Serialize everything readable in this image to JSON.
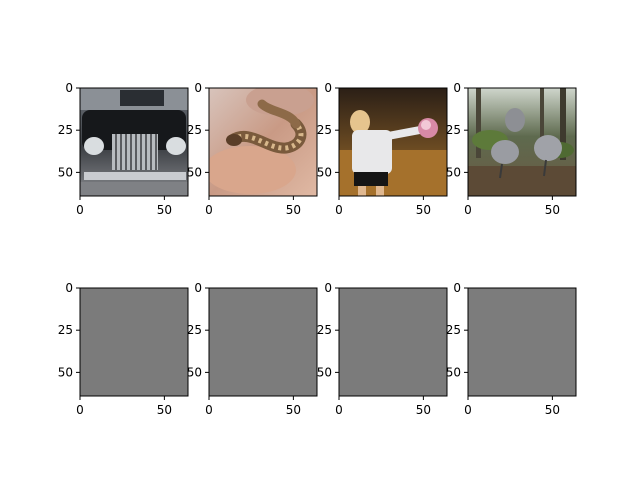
{
  "chart_data": [
    {
      "type": "image",
      "content": "photo of a vintage black car, front grille",
      "row": 0,
      "col": 0,
      "xticks": [
        0,
        50
      ],
      "yticks": [
        0,
        25,
        50
      ],
      "xlim": [
        0,
        64
      ],
      "ylim": [
        64,
        0
      ]
    },
    {
      "type": "image",
      "content": "photo of a small spotted snake held in a hand",
      "row": 0,
      "col": 1,
      "xticks": [
        0,
        50
      ],
      "yticks": [
        0,
        25,
        50
      ],
      "xlim": [
        0,
        64
      ],
      "ylim": [
        64,
        0
      ]
    },
    {
      "type": "image",
      "content": "photo of a girl playing volleyball indoors",
      "row": 0,
      "col": 2,
      "xticks": [
        0,
        50
      ],
      "yticks": [
        0,
        25,
        50
      ],
      "xlim": [
        0,
        64
      ],
      "ylim": [
        64,
        0
      ]
    },
    {
      "type": "image",
      "content": "photo of turkeys in a forest",
      "row": 0,
      "col": 3,
      "xticks": [
        0,
        50
      ],
      "yticks": [
        0,
        25,
        50
      ],
      "xlim": [
        0,
        64
      ],
      "ylim": [
        64,
        0
      ]
    },
    {
      "type": "image",
      "content": "uniform gray image",
      "row": 1,
      "col": 0,
      "xticks": [
        0,
        50
      ],
      "yticks": [
        0,
        25,
        50
      ],
      "xlim": [
        0,
        64
      ],
      "ylim": [
        64,
        0
      ]
    },
    {
      "type": "image",
      "content": "uniform gray image",
      "row": 1,
      "col": 1,
      "xticks": [
        0,
        50
      ],
      "yticks": [
        0,
        25,
        50
      ],
      "xlim": [
        0,
        64
      ],
      "ylim": [
        64,
        0
      ]
    },
    {
      "type": "image",
      "content": "uniform gray image",
      "row": 1,
      "col": 2,
      "xticks": [
        0,
        50
      ],
      "yticks": [
        0,
        25,
        50
      ],
      "xlim": [
        0,
        64
      ],
      "ylim": [
        64,
        0
      ]
    },
    {
      "type": "image",
      "content": "uniform gray image",
      "row": 1,
      "col": 3,
      "xticks": [
        0,
        50
      ],
      "yticks": [
        0,
        25,
        50
      ],
      "xlim": [
        0,
        64
      ],
      "ylim": [
        64,
        0
      ]
    }
  ]
}
